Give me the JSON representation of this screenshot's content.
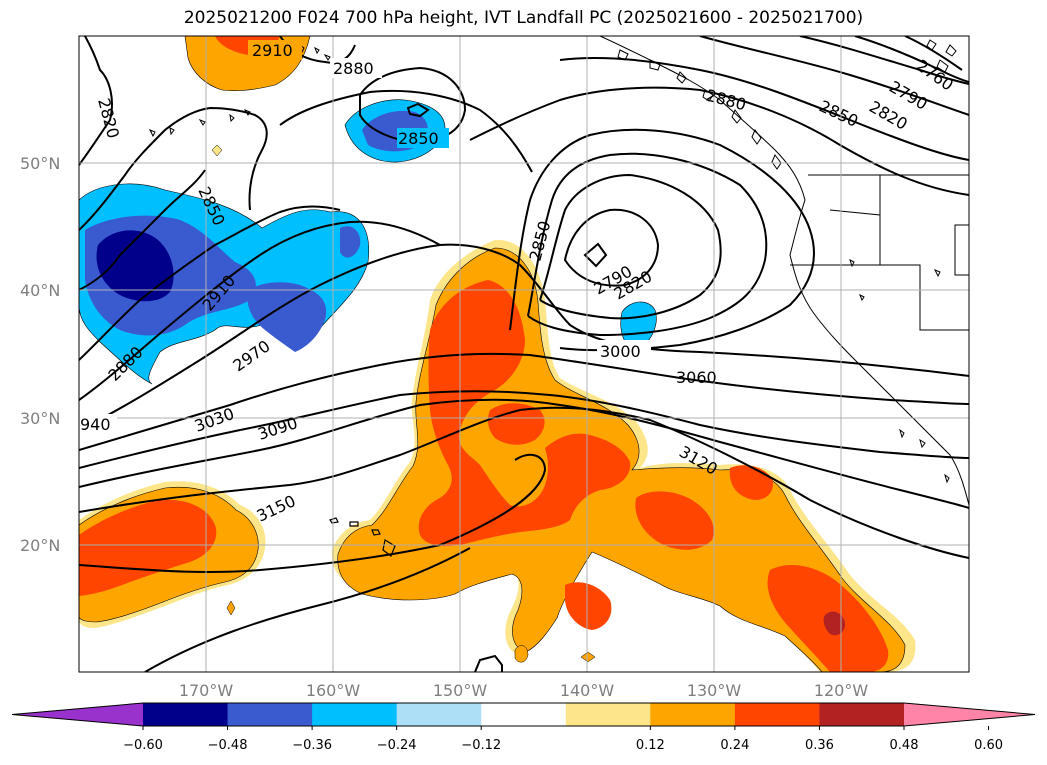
{
  "title": "2025021200 F024 700 hPa height, IVT Landfall PC (2025021600 - 2025021700)",
  "map": {
    "lat_labels": [
      "50°N",
      "40°N",
      "30°N",
      "20°N"
    ],
    "lon_labels": [
      "170°W",
      "160°W",
      "150°W",
      "140°W",
      "130°W",
      "120°W"
    ]
  },
  "colorbar": {
    "ticks": [
      "−0.60",
      "−0.48",
      "−0.36",
      "−0.24",
      "−0.12",
      "0.12",
      "0.24",
      "0.36",
      "0.48",
      "0.60"
    ],
    "colors": [
      "#9932cc",
      "#00008b",
      "#3a5bcf",
      "#00bfff",
      "#ade0f7",
      "#ffffff",
      "#fde68a",
      "#ffa500",
      "#ff4500",
      "#b22222",
      "#ff85a8"
    ]
  },
  "contour_labels": [
    "2910",
    "2880",
    "2820",
    "2850",
    "2850",
    "2910",
    "2880",
    "2970",
    "940",
    "3030",
    "3090",
    "3150",
    "2850",
    "2790",
    "2820",
    "3000",
    "3060",
    "3120",
    "2880",
    "2850",
    "2820",
    "2790",
    "2760"
  ]
}
